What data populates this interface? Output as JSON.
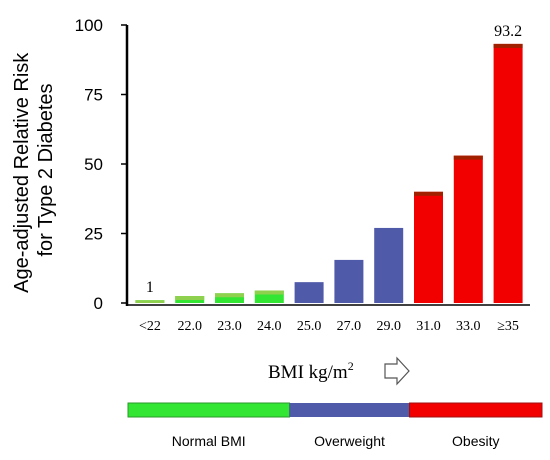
{
  "chart_data": {
    "type": "bar",
    "ylabel_line1": "Age-adjusted Relative Risk",
    "ylabel_line2": "for Type 2 Diabetes",
    "xlabel": "BMI kg/m",
    "xlabel_sup": "2",
    "xlabel_arrow": "arrow-right-icon",
    "ylim": [
      0,
      100
    ],
    "yticks": [
      "0",
      "25",
      "50",
      "75",
      "100"
    ],
    "categories": [
      "<22",
      "22.0",
      "23.0",
      "24.0",
      "25.0",
      "27.0",
      "29.0",
      "31.0",
      "33.0",
      "≥35"
    ],
    "values": [
      1,
      2.5,
      3.5,
      4.5,
      7.5,
      15.5,
      27,
      40,
      53,
      93.2
    ],
    "bar_groups": [
      "normal",
      "normal",
      "normal",
      "normal",
      "overweight",
      "overweight",
      "overweight",
      "obesity",
      "obesity",
      "obesity"
    ],
    "data_labels": [
      {
        "index": 0,
        "text": "1"
      },
      {
        "index": 9,
        "text": "93.2"
      }
    ],
    "grid": false,
    "legend": {
      "placement": "bottom",
      "items": [
        {
          "group": "normal",
          "label": "Normal BMI"
        },
        {
          "group": "overweight",
          "label": "Overweight"
        },
        {
          "group": "obesity",
          "label": "Obesity"
        }
      ]
    },
    "colors": {
      "normal": "#33e633",
      "normal_top": "#8fd14f",
      "overweight": "#4f5aa8",
      "obesity": "#f20000",
      "obesity_top": "#a02000"
    }
  }
}
